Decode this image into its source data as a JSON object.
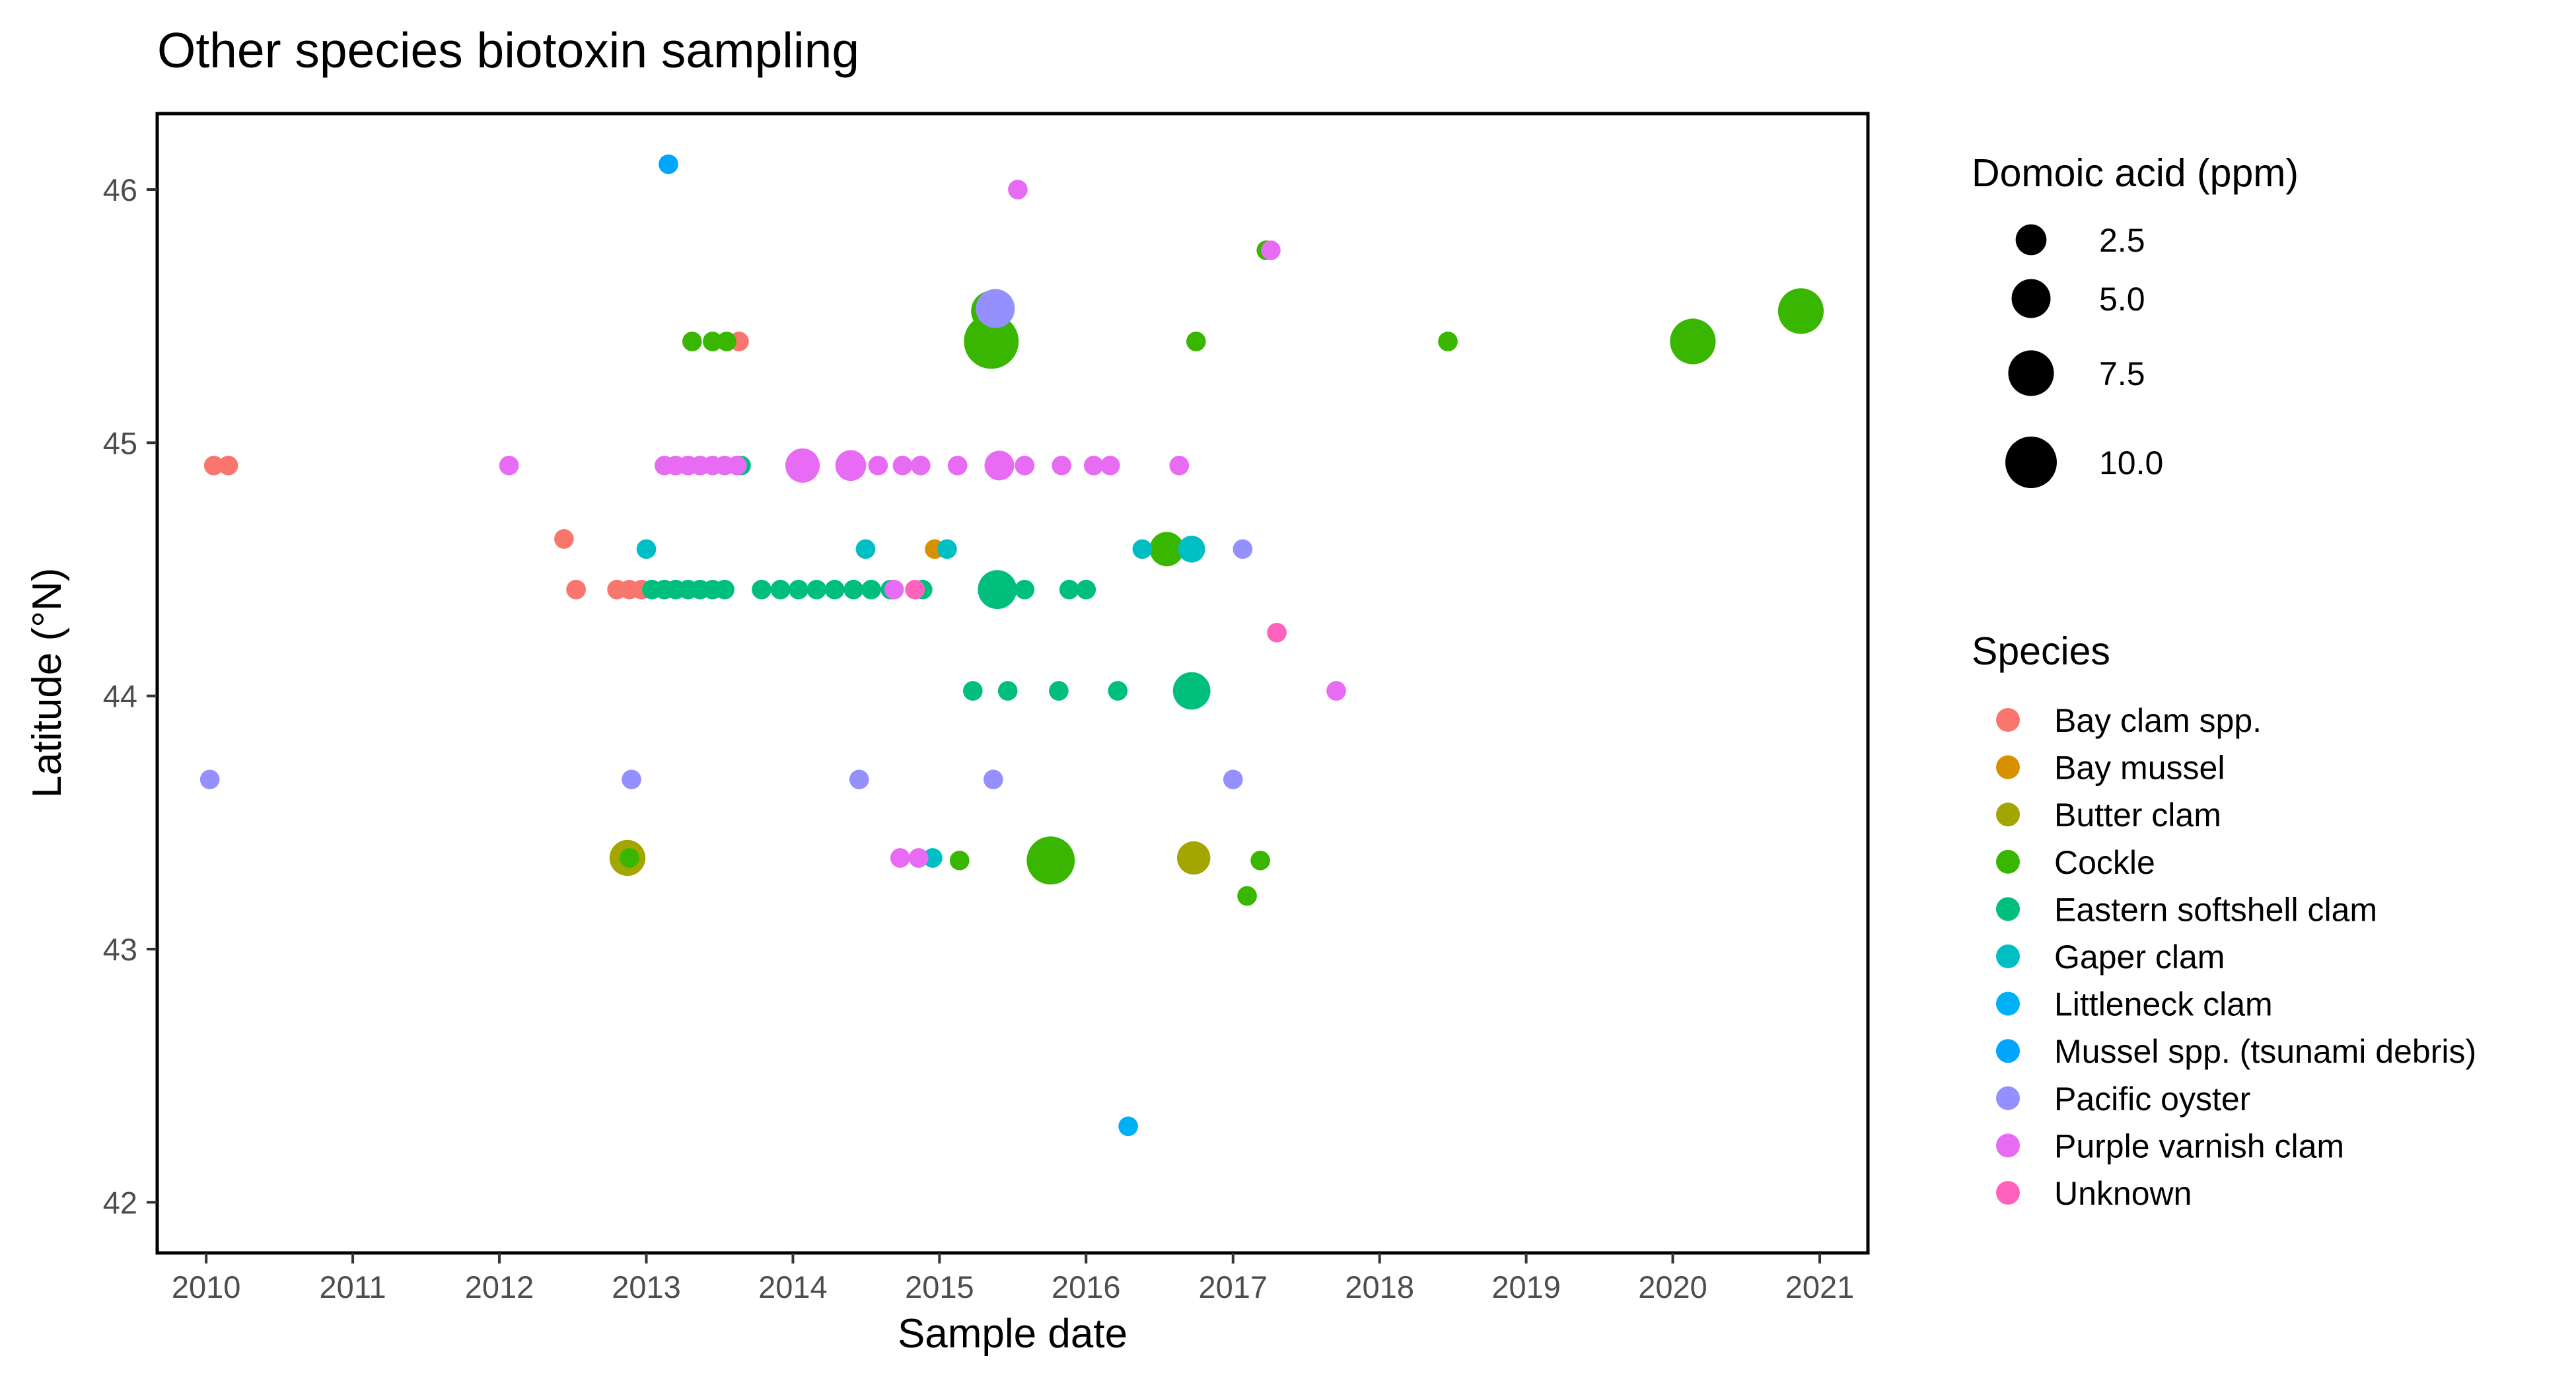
{
  "chart_data": {
    "type": "scatter",
    "title": "Other species biotoxin sampling",
    "xlabel": "Sample date",
    "ylabel": "Latitude (°N)",
    "xlim": [
      "2009-09-01",
      "2021-05-01"
    ],
    "ylim": [
      41.8,
      46.3
    ],
    "x_ticks": [
      "2010",
      "2011",
      "2012",
      "2013",
      "2014",
      "2015",
      "2016",
      "2017",
      "2018",
      "2019",
      "2020",
      "2021"
    ],
    "y_ticks": [
      "42",
      "43",
      "44",
      "45",
      "46"
    ],
    "grid": false,
    "size_legend": {
      "title": "Domoic acid (ppm)",
      "entries": [
        {
          "label": "2.5",
          "value": 2.5
        },
        {
          "label": "5.0",
          "value": 5.0
        },
        {
          "label": "7.5",
          "value": 7.5
        },
        {
          "label": "10.0",
          "value": 10.0
        }
      ]
    },
    "color_legend": {
      "title": "Species",
      "entries": [
        {
          "label": "Bay clam spp.",
          "color": "#F8766D"
        },
        {
          "label": "Bay mussel",
          "color": "#D89000"
        },
        {
          "label": "Butter clam",
          "color": "#A3A500"
        },
        {
          "label": "Cockle",
          "color": "#39B600"
        },
        {
          "label": "Eastern softshell clam",
          "color": "#00BF7D"
        },
        {
          "label": "Gaper clam",
          "color": "#00BFC4"
        },
        {
          "label": "Littleneck clam",
          "color": "#00B0F6"
        },
        {
          "label": "Mussel spp. (tsunami debris)",
          "color": "#00A5FF"
        },
        {
          "label": "Pacific oyster",
          "color": "#9590FF"
        },
        {
          "label": "Purple varnish clam",
          "color": "#E76BF3"
        },
        {
          "label": "Unknown",
          "color": "#FF62BC"
        }
      ]
    },
    "series": [
      {
        "name": "Bay clam spp.",
        "color": "#F8766D",
        "points": [
          {
            "x": "2010-01-20",
            "y": 44.91,
            "da": 0
          },
          {
            "x": "2010-02-25",
            "y": 44.91,
            "da": 0
          },
          {
            "x": "2012-06-10",
            "y": 44.62,
            "da": 0
          },
          {
            "x": "2012-07-10",
            "y": 44.42,
            "da": 0
          },
          {
            "x": "2012-10-20",
            "y": 44.42,
            "da": 0
          },
          {
            "x": "2012-11-20",
            "y": 44.42,
            "da": 0
          },
          {
            "x": "2012-12-20",
            "y": 44.42,
            "da": 0
          },
          {
            "x": "2013-08-20",
            "y": 45.4,
            "da": 0
          }
        ]
      },
      {
        "name": "Bay mussel",
        "color": "#D89000",
        "points": [
          {
            "x": "2014-12-20",
            "y": 44.58,
            "da": 0
          }
        ]
      },
      {
        "name": "Butter clam",
        "color": "#A3A500",
        "points": [
          {
            "x": "2012-11-15",
            "y": 43.36,
            "da": 4.0
          },
          {
            "x": "2016-09-25",
            "y": 43.36,
            "da": 3.2
          }
        ]
      },
      {
        "name": "Cockle",
        "color": "#39B600",
        "points": [
          {
            "x": "2012-11-20",
            "y": 43.36,
            "da": 0
          },
          {
            "x": "2013-04-25",
            "y": 45.4,
            "da": 0
          },
          {
            "x": "2013-06-15",
            "y": 45.4,
            "da": 0
          },
          {
            "x": "2013-07-20",
            "y": 45.4,
            "da": 0
          },
          {
            "x": "2015-05-10",
            "y": 45.4,
            "da": 11.5
          },
          {
            "x": "2015-05-10",
            "y": 45.52,
            "da": 5.5
          },
          {
            "x": "2015-02-20",
            "y": 43.35,
            "da": 0
          },
          {
            "x": "2015-10-05",
            "y": 43.35,
            "da": 8.5
          },
          {
            "x": "2016-07-20",
            "y": 44.58,
            "da": 3.5
          },
          {
            "x": "2016-10-01",
            "y": 45.4,
            "da": 0
          },
          {
            "x": "2017-02-05",
            "y": 43.21,
            "da": 0
          },
          {
            "x": "2017-03-10",
            "y": 43.35,
            "da": 0
          },
          {
            "x": "2017-03-25",
            "y": 45.76,
            "da": 0
          },
          {
            "x": "2018-06-20",
            "y": 45.4,
            "da": 0
          },
          {
            "x": "2020-02-20",
            "y": 45.4,
            "da": 7.5
          },
          {
            "x": "2020-11-15",
            "y": 45.52,
            "da": 7.5
          }
        ]
      },
      {
        "name": "Eastern softshell clam",
        "color": "#00BF7D",
        "points": [
          {
            "x": "2013-01-15",
            "y": 44.42,
            "da": 0
          },
          {
            "x": "2013-02-15",
            "y": 44.42,
            "da": 0
          },
          {
            "x": "2013-03-15",
            "y": 44.42,
            "da": 0
          },
          {
            "x": "2013-04-15",
            "y": 44.42,
            "da": 0
          },
          {
            "x": "2013-05-15",
            "y": 44.42,
            "da": 0
          },
          {
            "x": "2013-06-15",
            "y": 44.42,
            "da": 0
          },
          {
            "x": "2013-07-15",
            "y": 44.42,
            "da": 0
          },
          {
            "x": "2013-08-25",
            "y": 44.91,
            "da": 0
          },
          {
            "x": "2013-10-15",
            "y": 44.42,
            "da": 0
          },
          {
            "x": "2013-12-01",
            "y": 44.42,
            "da": 0
          },
          {
            "x": "2014-01-15",
            "y": 44.42,
            "da": 0
          },
          {
            "x": "2014-03-01",
            "y": 44.42,
            "da": 0
          },
          {
            "x": "2014-04-15",
            "y": 44.42,
            "da": 0
          },
          {
            "x": "2014-06-01",
            "y": 44.42,
            "da": 0
          },
          {
            "x": "2014-07-15",
            "y": 44.42,
            "da": 0
          },
          {
            "x": "2014-09-01",
            "y": 44.42,
            "da": 0
          },
          {
            "x": "2014-11-20",
            "y": 44.42,
            "da": 0
          },
          {
            "x": "2015-03-25",
            "y": 44.02,
            "da": 0
          },
          {
            "x": "2015-05-25",
            "y": 44.42,
            "da": 5.0
          },
          {
            "x": "2015-06-20",
            "y": 44.02,
            "da": 0
          },
          {
            "x": "2015-08-01",
            "y": 44.42,
            "da": 0
          },
          {
            "x": "2015-10-25",
            "y": 44.02,
            "da": 0
          },
          {
            "x": "2015-11-20",
            "y": 44.42,
            "da": 0
          },
          {
            "x": "2016-01-01",
            "y": 44.42,
            "da": 0
          },
          {
            "x": "2016-03-20",
            "y": 44.02,
            "da": 0
          },
          {
            "x": "2016-09-20",
            "y": 44.02,
            "da": 4.5
          }
        ]
      },
      {
        "name": "Gaper clam",
        "color": "#00BFC4",
        "points": [
          {
            "x": "2013-01-01",
            "y": 44.58,
            "da": 0
          },
          {
            "x": "2014-07-01",
            "y": 44.58,
            "da": 0
          },
          {
            "x": "2015-01-20",
            "y": 44.58,
            "da": 0
          },
          {
            "x": "2014-12-15",
            "y": 43.36,
            "da": 0
          },
          {
            "x": "2016-05-20",
            "y": 44.58,
            "da": 0
          },
          {
            "x": "2016-09-20",
            "y": 44.58,
            "da": 1.5
          }
        ]
      },
      {
        "name": "Littleneck clam",
        "color": "#00B0F6",
        "points": [
          {
            "x": "2016-04-15",
            "y": 42.3,
            "da": 0
          }
        ]
      },
      {
        "name": "Mussel spp. (tsunami debris)",
        "color": "#00A5FF",
        "points": [
          {
            "x": "2013-02-25",
            "y": 46.1,
            "da": 0
          }
        ]
      },
      {
        "name": "Pacific oyster",
        "color": "#9590FF",
        "points": [
          {
            "x": "2010-01-10",
            "y": 43.67,
            "da": 0
          },
          {
            "x": "2012-11-25",
            "y": 43.67,
            "da": 0
          },
          {
            "x": "2014-06-15",
            "y": 43.67,
            "da": 0
          },
          {
            "x": "2015-05-15",
            "y": 43.67,
            "da": 0
          },
          {
            "x": "2015-05-20",
            "y": 45.53,
            "da": 5.0
          },
          {
            "x": "2017-01-01",
            "y": 43.67,
            "da": 0
          },
          {
            "x": "2017-01-25",
            "y": 44.58,
            "da": 0
          }
        ]
      },
      {
        "name": "Purple varnish clam",
        "color": "#E76BF3",
        "points": [
          {
            "x": "2012-01-25",
            "y": 44.91,
            "da": 0
          },
          {
            "x": "2013-02-15",
            "y": 44.91,
            "da": 0
          },
          {
            "x": "2013-03-15",
            "y": 44.91,
            "da": 0
          },
          {
            "x": "2013-04-15",
            "y": 44.91,
            "da": 0
          },
          {
            "x": "2013-05-15",
            "y": 44.91,
            "da": 0
          },
          {
            "x": "2013-06-15",
            "y": 44.91,
            "da": 0
          },
          {
            "x": "2013-07-15",
            "y": 44.91,
            "da": 0
          },
          {
            "x": "2013-08-15",
            "y": 44.91,
            "da": 0
          },
          {
            "x": "2014-01-25",
            "y": 44.91,
            "da": 3.5
          },
          {
            "x": "2014-05-25",
            "y": 44.91,
            "da": 2.5
          },
          {
            "x": "2014-08-01",
            "y": 44.91,
            "da": 0
          },
          {
            "x": "2014-10-01",
            "y": 44.91,
            "da": 0
          },
          {
            "x": "2014-11-15",
            "y": 44.91,
            "da": 0
          },
          {
            "x": "2015-02-15",
            "y": 44.91,
            "da": 0
          },
          {
            "x": "2015-05-30",
            "y": 44.91,
            "da": 2.2
          },
          {
            "x": "2015-08-01",
            "y": 44.91,
            "da": 0
          },
          {
            "x": "2015-11-01",
            "y": 44.91,
            "da": 0
          },
          {
            "x": "2016-01-20",
            "y": 44.91,
            "da": 0
          },
          {
            "x": "2016-03-01",
            "y": 44.91,
            "da": 0
          },
          {
            "x": "2016-08-20",
            "y": 44.91,
            "da": 0
          },
          {
            "x": "2015-07-15",
            "y": 46.0,
            "da": 0
          },
          {
            "x": "2014-09-25",
            "y": 43.36,
            "da": 0
          },
          {
            "x": "2014-11-10",
            "y": 43.36,
            "da": 0
          },
          {
            "x": "2014-09-10",
            "y": 44.42,
            "da": 0
          },
          {
            "x": "2017-04-05",
            "y": 45.76,
            "da": 0
          },
          {
            "x": "2017-09-15",
            "y": 44.02,
            "da": 0
          }
        ]
      },
      {
        "name": "Unknown",
        "color": "#FF62BC",
        "points": [
          {
            "x": "2014-11-01",
            "y": 44.42,
            "da": 0
          },
          {
            "x": "2017-04-20",
            "y": 44.25,
            "da": 0
          }
        ]
      }
    ]
  }
}
